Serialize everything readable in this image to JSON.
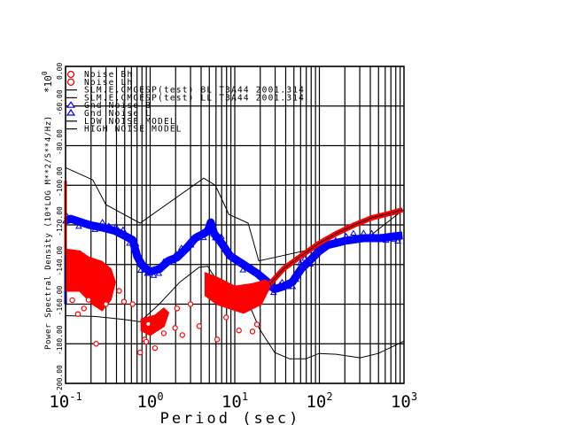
{
  "chart_data": {
    "type": "line",
    "xlabel": "Period (sec)",
    "ylabel": "Power Spectral Density (10*LOG M**2/S**4/Hz)",
    "y_multiplier": "*10",
    "y_multiplier_exp": "0",
    "y_top_label": "0.00",
    "xscale": "log",
    "xlim": [
      0.1,
      1000
    ],
    "ylim": [
      -200,
      -40
    ],
    "grid": true,
    "legend_position": "top-left",
    "xticks": [
      {
        "base": "10",
        "exp": "-1",
        "value": 0.1
      },
      {
        "base": "10",
        "exp": "0",
        "value": 1
      },
      {
        "base": "10",
        "exp": "1",
        "value": 10
      },
      {
        "base": "10",
        "exp": "2",
        "value": 100
      },
      {
        "base": "10",
        "exp": "3",
        "value": 1000
      }
    ],
    "yticks": [
      {
        "label": "-200.00",
        "value": -200
      },
      {
        "label": "-180.00",
        "value": -180
      },
      {
        "label": "-160.00",
        "value": -160
      },
      {
        "label": "-140.00",
        "value": -140
      },
      {
        "label": "-120.00",
        "value": -120
      },
      {
        "label": "-100.00",
        "value": -100
      },
      {
        "label": "-80.00",
        "value": -80
      },
      {
        "label": "-60.00",
        "value": -60
      }
    ],
    "legend": [
      {
        "label": "Noise Bh",
        "marker": "circle",
        "color": "#ff0000"
      },
      {
        "label": "Noise Lh",
        "marker": "circle",
        "color": "#ff0000"
      },
      {
        "label": "SLM.E.CMGESP(test) BL T3A44 2001.314",
        "marker": "line",
        "color": "#000000"
      },
      {
        "label": "SLM.E.CMGESP(test) LL T3A44 2001.314",
        "marker": "line",
        "color": "#000000"
      },
      {
        "label": "Gnd Noise B",
        "marker": "triangle",
        "color": "#0000ff"
      },
      {
        "label": "Gnd Noise L",
        "marker": "triangle",
        "color": "#0000ff"
      },
      {
        "label": "LOW NOISE MODEL",
        "marker": "line",
        "color": "#000000"
      },
      {
        "label": "HIGH NOISE MODEL",
        "marker": "line",
        "color": "#000000"
      }
    ],
    "series": [
      {
        "name": "HIGH NOISE MODEL",
        "color": "#000000",
        "points": [
          [
            0.1,
            -91.1
          ],
          [
            0.21,
            -97.3
          ],
          [
            0.3,
            -109.8
          ],
          [
            0.76,
            -119.1
          ],
          [
            4.3,
            -96.4
          ],
          [
            5.9,
            -100
          ],
          [
            8.5,
            -114.7
          ],
          [
            14.4,
            -119.1
          ],
          [
            19.2,
            -138.2
          ],
          [
            390,
            -125.8
          ],
          [
            980,
            -112.4
          ]
        ]
      },
      {
        "name": "LOW NOISE MODEL",
        "color": "#000000",
        "points": [
          [
            0.1,
            -165.8
          ],
          [
            0.22,
            -166.2
          ],
          [
            0.46,
            -167.6
          ],
          [
            0.76,
            -168.9
          ],
          [
            1.28,
            -160
          ],
          [
            2.24,
            -148.9
          ],
          [
            3.8,
            -141.3
          ],
          [
            4.8,
            -140.9
          ],
          [
            5.4,
            -144.4
          ],
          [
            8.4,
            -155.6
          ],
          [
            15.5,
            -162.2
          ],
          [
            19.5,
            -172.4
          ],
          [
            29.6,
            -184.4
          ],
          [
            44.6,
            -187.6
          ],
          [
            68.6,
            -187.6
          ],
          [
            99,
            -184.9
          ],
          [
            158,
            -185.3
          ],
          [
            304,
            -187.1
          ],
          [
            495,
            -184.9
          ],
          [
            1000,
            -178.7
          ]
        ]
      },
      {
        "name": "Gnd Noise",
        "color": "#0000ff",
        "marker": "triangle",
        "points": [
          [
            0.1,
            -117.8
          ],
          [
            0.115,
            -116.9
          ],
          [
            0.19,
            -120
          ],
          [
            0.27,
            -121.3
          ],
          [
            0.39,
            -123.1
          ],
          [
            0.49,
            -125.3
          ],
          [
            0.62,
            -127.6
          ],
          [
            0.7,
            -135.6
          ],
          [
            0.79,
            -140
          ],
          [
            0.9,
            -142.2
          ],
          [
            1.0,
            -143.6
          ],
          [
            1.29,
            -142.2
          ],
          [
            1.64,
            -138.2
          ],
          [
            2.08,
            -136.4
          ],
          [
            2.65,
            -132
          ],
          [
            3.4,
            -126.7
          ],
          [
            4.3,
            -124.4
          ],
          [
            4.8,
            -123.1
          ],
          [
            5.2,
            -118.7
          ],
          [
            5.7,
            -124.4
          ],
          [
            6.9,
            -128.9
          ],
          [
            8.8,
            -135.6
          ],
          [
            12.7,
            -140
          ],
          [
            18.3,
            -144.4
          ],
          [
            26,
            -149.8
          ],
          [
            29.5,
            -152.4
          ],
          [
            37.6,
            -151.1
          ],
          [
            47.8,
            -148.9
          ],
          [
            61,
            -142.2
          ],
          [
            78,
            -137.8
          ],
          [
            99,
            -133.3
          ],
          [
            125,
            -130.2
          ],
          [
            203,
            -128
          ],
          [
            330,
            -126.7
          ],
          [
            530,
            -126.7
          ],
          [
            760,
            -125.8
          ],
          [
            960,
            -125.3
          ]
        ],
        "spike": [
          [
            0.1,
            -100
          ],
          [
            0.1,
            -160
          ]
        ]
      },
      {
        "name": "Noise",
        "color": "#ff0000",
        "marker": "circle",
        "trend": [
          [
            26,
            -149.8
          ],
          [
            37.6,
            -142.2
          ],
          [
            61,
            -135.6
          ],
          [
            99,
            -129.3
          ],
          [
            158,
            -124.4
          ],
          [
            260,
            -120
          ],
          [
            420,
            -116.4
          ],
          [
            680,
            -114.2
          ],
          [
            960,
            -112.4
          ]
        ],
        "spike": [
          [
            0.1,
            -97.8
          ],
          [
            0.1,
            -135.6
          ]
        ],
        "clusters": [
          [
            [
              0.1,
              -132.4
            ],
            [
              0.147,
              -133.3
            ],
            [
              0.187,
              -136.4
            ],
            [
              0.27,
              -138.7
            ],
            [
              0.34,
              -142.2
            ],
            [
              0.385,
              -148.9
            ],
            [
              0.34,
              -157.8
            ],
            [
              0.27,
              -163.1
            ],
            [
              0.21,
              -160
            ],
            [
              0.147,
              -153.3
            ],
            [
              0.1,
              -153.3
            ]
          ],
          [
            [
              0.79,
              -167.6
            ],
            [
              1.14,
              -165.8
            ],
            [
              1.45,
              -162.2
            ],
            [
              1.64,
              -164.4
            ],
            [
              1.45,
              -171.1
            ],
            [
              1.0,
              -175.6
            ],
            [
              0.79,
              -173.3
            ]
          ],
          [
            [
              4.5,
              -144.4
            ],
            [
              6.2,
              -146.7
            ],
            [
              10,
              -151.1
            ],
            [
              16.2,
              -149.8
            ],
            [
              23.3,
              -148
            ],
            [
              26,
              -151.1
            ],
            [
              20.5,
              -160
            ],
            [
              12.7,
              -164.4
            ],
            [
              8.8,
              -162.2
            ],
            [
              6.2,
              -160
            ],
            [
              4.5,
              -155.6
            ]
          ]
        ],
        "scatter": [
          [
            0.23,
            -180
          ],
          [
            0.76,
            -184.4
          ],
          [
            0.86,
            -177.8
          ],
          [
            2.08,
            -162.2
          ],
          [
            2.4,
            -175.6
          ],
          [
            3.0,
            -160
          ],
          [
            3.8,
            -171.1
          ],
          [
            6.2,
            -177.8
          ],
          [
            7.9,
            -166.7
          ],
          [
            11.2,
            -173.3
          ],
          [
            16.2,
            -173.8
          ],
          [
            18.3,
            -170.2
          ],
          [
            0.187,
            -157.8
          ],
          [
            0.165,
            -162.2
          ],
          [
            0.3,
            -160
          ],
          [
            0.43,
            -153.3
          ],
          [
            0.49,
            -158.7
          ],
          [
            0.62,
            -160
          ],
          [
            1.14,
            -182.2
          ],
          [
            1.45,
            -174.7
          ],
          [
            1.97,
            -172
          ],
          [
            0.12,
            -158
          ],
          [
            0.14,
            -165
          ],
          [
            0.9,
            -179
          ],
          [
            0.95,
            -170
          ]
        ]
      }
    ]
  }
}
